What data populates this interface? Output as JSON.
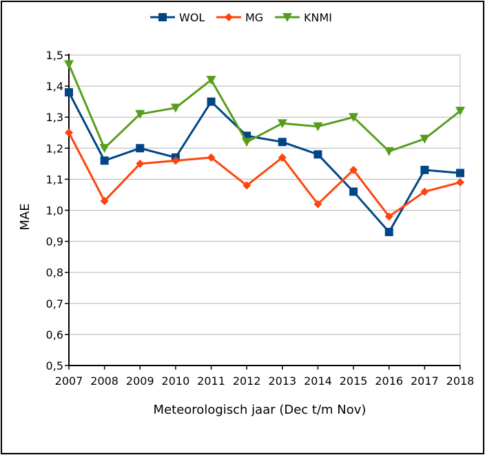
{
  "chart_data": {
    "type": "line",
    "categories": [
      "2007",
      "2008",
      "2009",
      "2010",
      "2011",
      "2012",
      "2013",
      "2014",
      "2015",
      "2016",
      "2017",
      "2018"
    ],
    "y_ticks": [
      "0,5",
      "0,6",
      "0,7",
      "0,8",
      "0,9",
      "1,0",
      "1,1",
      "1,2",
      "1,3",
      "1,4",
      "1,5"
    ],
    "ylim": [
      0.5,
      1.5
    ],
    "xlabel": "Meteorologisch jaar (Dec t/m Nov)",
    "ylabel": "MAE",
    "grid": true,
    "legend_position": "top",
    "series": [
      {
        "name": "WOL",
        "color": "#004586",
        "marker": "square",
        "values": [
          1.38,
          1.16,
          1.2,
          1.17,
          1.35,
          1.24,
          1.22,
          1.18,
          1.06,
          0.93,
          1.13,
          1.12
        ]
      },
      {
        "name": "MG",
        "color": "#ff420e",
        "marker": "diamond",
        "values": [
          1.25,
          1.03,
          1.15,
          1.16,
          1.17,
          1.08,
          1.17,
          1.02,
          1.13,
          0.98,
          1.06,
          1.09
        ]
      },
      {
        "name": "KNMI",
        "color": "#579d1c",
        "marker": "triangle-down",
        "values": [
          1.47,
          1.2,
          1.31,
          1.33,
          1.42,
          1.22,
          1.28,
          1.27,
          1.3,
          1.19,
          1.23,
          1.32
        ]
      }
    ]
  }
}
